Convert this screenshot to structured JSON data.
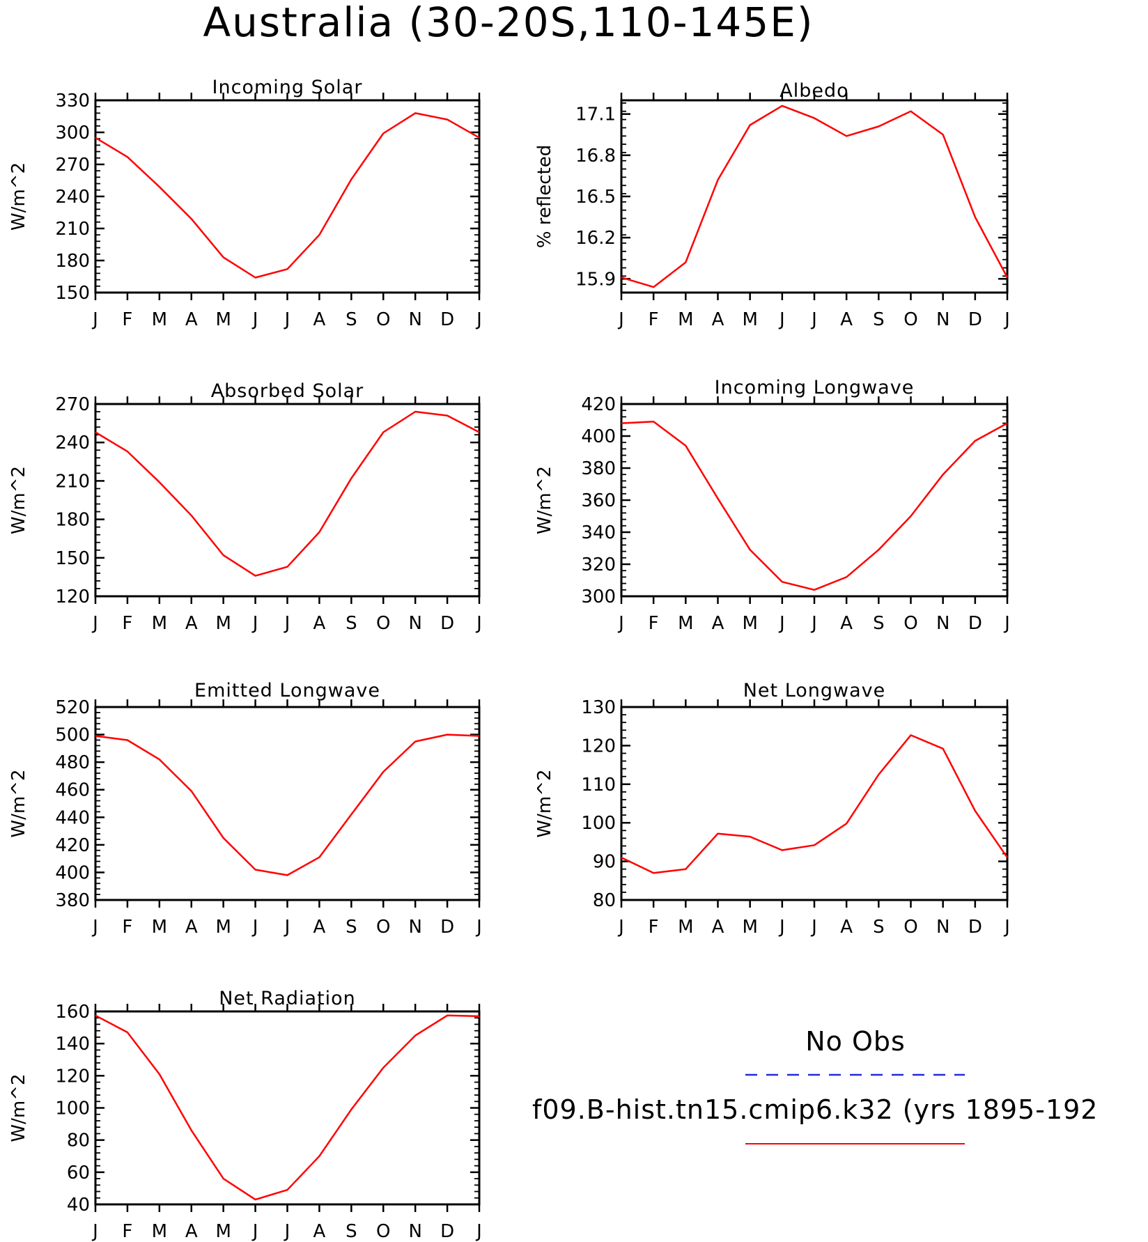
{
  "figure_title": "Australia (30-20S,110-145E)",
  "months": [
    "J",
    "F",
    "M",
    "A",
    "M",
    "J",
    "J",
    "A",
    "S",
    "O",
    "N",
    "D",
    "J"
  ],
  "legend": {
    "obs_label": "No Obs",
    "obs_color": "#1f2bdb",
    "model_label": "f09.B-hist.tn15.cmip6.k32 (yrs 1895-192",
    "model_color": "#ff0000"
  },
  "chart_data": [
    {
      "type": "line",
      "title": "Incoming Solar",
      "ylabel": "W/m^2",
      "ylim": [
        150,
        330
      ],
      "yticks": [
        150,
        180,
        210,
        240,
        270,
        300,
        330
      ],
      "ytick_labels": [
        "150",
        "180",
        "210",
        "240",
        "270",
        "300",
        "330"
      ],
      "categories": [
        "J",
        "F",
        "M",
        "A",
        "M",
        "J",
        "J",
        "A",
        "S",
        "O",
        "N",
        "D",
        "J"
      ],
      "series": [
        {
          "values": [
            295,
            277,
            249,
            219,
            183,
            164,
            172,
            204,
            256,
            299,
            318,
            312,
            295
          ]
        }
      ]
    },
    {
      "type": "line",
      "title": "Albedo",
      "ylabel": "% reflected",
      "ylim": [
        15.8,
        17.2
      ],
      "yticks": [
        15.9,
        16.2,
        16.5,
        16.8,
        17.1
      ],
      "ytick_labels": [
        "15.9",
        "16.2",
        "16.5",
        "16.8",
        "17.1"
      ],
      "categories": [
        "J",
        "F",
        "M",
        "A",
        "M",
        "J",
        "J",
        "A",
        "S",
        "O",
        "N",
        "D",
        "J"
      ],
      "series": [
        {
          "values": [
            15.91,
            15.84,
            16.02,
            16.62,
            17.02,
            17.16,
            17.07,
            16.94,
            17.01,
            17.12,
            16.95,
            16.35,
            15.91
          ]
        }
      ]
    },
    {
      "type": "line",
      "title": "Absorbed Solar",
      "ylabel": "W/m^2",
      "ylim": [
        120,
        270
      ],
      "yticks": [
        120,
        150,
        180,
        210,
        240,
        270
      ],
      "ytick_labels": [
        "120",
        "150",
        "180",
        "210",
        "240",
        "270"
      ],
      "categories": [
        "J",
        "F",
        "M",
        "A",
        "M",
        "J",
        "J",
        "A",
        "S",
        "O",
        "N",
        "D",
        "J"
      ],
      "series": [
        {
          "values": [
            248,
            233,
            209,
            183,
            152,
            136,
            143,
            170,
            212,
            248,
            264,
            261,
            248
          ]
        }
      ]
    },
    {
      "type": "line",
      "title": "Incoming Longwave",
      "ylabel": "W/m^2",
      "ylim": [
        300,
        420
      ],
      "yticks": [
        300,
        320,
        340,
        360,
        380,
        400,
        420
      ],
      "ytick_labels": [
        "300",
        "320",
        "340",
        "360",
        "380",
        "400",
        "420"
      ],
      "categories": [
        "J",
        "F",
        "M",
        "A",
        "M",
        "J",
        "J",
        "A",
        "S",
        "O",
        "N",
        "D",
        "J"
      ],
      "series": [
        {
          "values": [
            408,
            409,
            394,
            361,
            329,
            309,
            304,
            312,
            329,
            350,
            376,
            397,
            408
          ]
        }
      ]
    },
    {
      "type": "line",
      "title": "Emitted Longwave",
      "ylabel": "W/m^2",
      "ylim": [
        380,
        520
      ],
      "yticks": [
        380,
        400,
        420,
        440,
        460,
        480,
        500,
        520
      ],
      "ytick_labels": [
        "380",
        "400",
        "420",
        "440",
        "460",
        "480",
        "500",
        "520"
      ],
      "categories": [
        "J",
        "F",
        "M",
        "A",
        "M",
        "J",
        "J",
        "A",
        "S",
        "O",
        "N",
        "D",
        "J"
      ],
      "series": [
        {
          "values": [
            499,
            496,
            482,
            459,
            425,
            402,
            398,
            411,
            442,
            473,
            495,
            500,
            499
          ]
        }
      ]
    },
    {
      "type": "line",
      "title": "Net Longwave",
      "ylabel": "W/m^2",
      "ylim": [
        80,
        130
      ],
      "yticks": [
        80,
        90,
        100,
        110,
        120,
        130
      ],
      "ytick_labels": [
        "80",
        "90",
        "100",
        "110",
        "120",
        "130"
      ],
      "categories": [
        "J",
        "F",
        "M",
        "A",
        "M",
        "J",
        "J",
        "A",
        "S",
        "O",
        "N",
        "D",
        "J"
      ],
      "series": [
        {
          "values": [
            91,
            87,
            88,
            97.2,
            96.4,
            92.9,
            94.2,
            99.8,
            112.5,
            122.7,
            119.2,
            103.1,
            91
          ]
        }
      ]
    },
    {
      "type": "line",
      "title": "Net Radiation",
      "ylabel": "W/m^2",
      "ylim": [
        40,
        160
      ],
      "yticks": [
        40,
        60,
        80,
        100,
        120,
        140,
        160
      ],
      "ytick_labels": [
        "40",
        "60",
        "80",
        "100",
        "120",
        "140",
        "160"
      ],
      "categories": [
        "J",
        "F",
        "M",
        "A",
        "M",
        "J",
        "J",
        "A",
        "S",
        "O",
        "N",
        "D",
        "J"
      ],
      "series": [
        {
          "values": [
            157.5,
            147,
            121,
            86,
            56,
            43,
            49,
            70,
            99,
            125,
            145,
            157.5,
            157
          ]
        }
      ]
    }
  ]
}
